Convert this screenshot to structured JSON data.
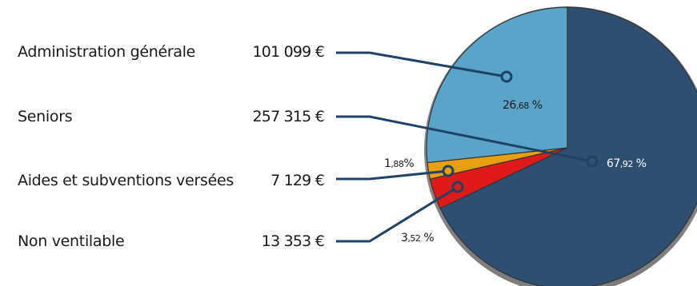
{
  "chart_data": {
    "type": "pie",
    "rows": [
      {
        "label": "Administration générale",
        "amount": "101 099 €",
        "pct_int": "26",
        "pct_dec": ",68",
        "pct_suffix": " %",
        "value": 26.68,
        "color": "#5aa3c9"
      },
      {
        "label": "Seniors",
        "amount": "257 315 €",
        "pct_int": "67",
        "pct_dec": ",92",
        "pct_suffix": " %",
        "value": 67.92,
        "color": "#2e4f71"
      },
      {
        "label": "Aides et subventions versées",
        "amount": "7 129 €",
        "pct_int": "1",
        "pct_dec": ",88",
        "pct_suffix": "%",
        "value": 1.88,
        "color": "#e8a010"
      },
      {
        "label": "Non ventilable",
        "amount": "13 353 €",
        "pct_int": "3",
        "pct_dec": ",52",
        "pct_suffix": " %",
        "value": 3.52,
        "color": "#e01a1a"
      }
    ],
    "colors": {
      "leader": "#1e4366",
      "slice_edge": "#333333",
      "rim": "#8c8c8c"
    }
  }
}
